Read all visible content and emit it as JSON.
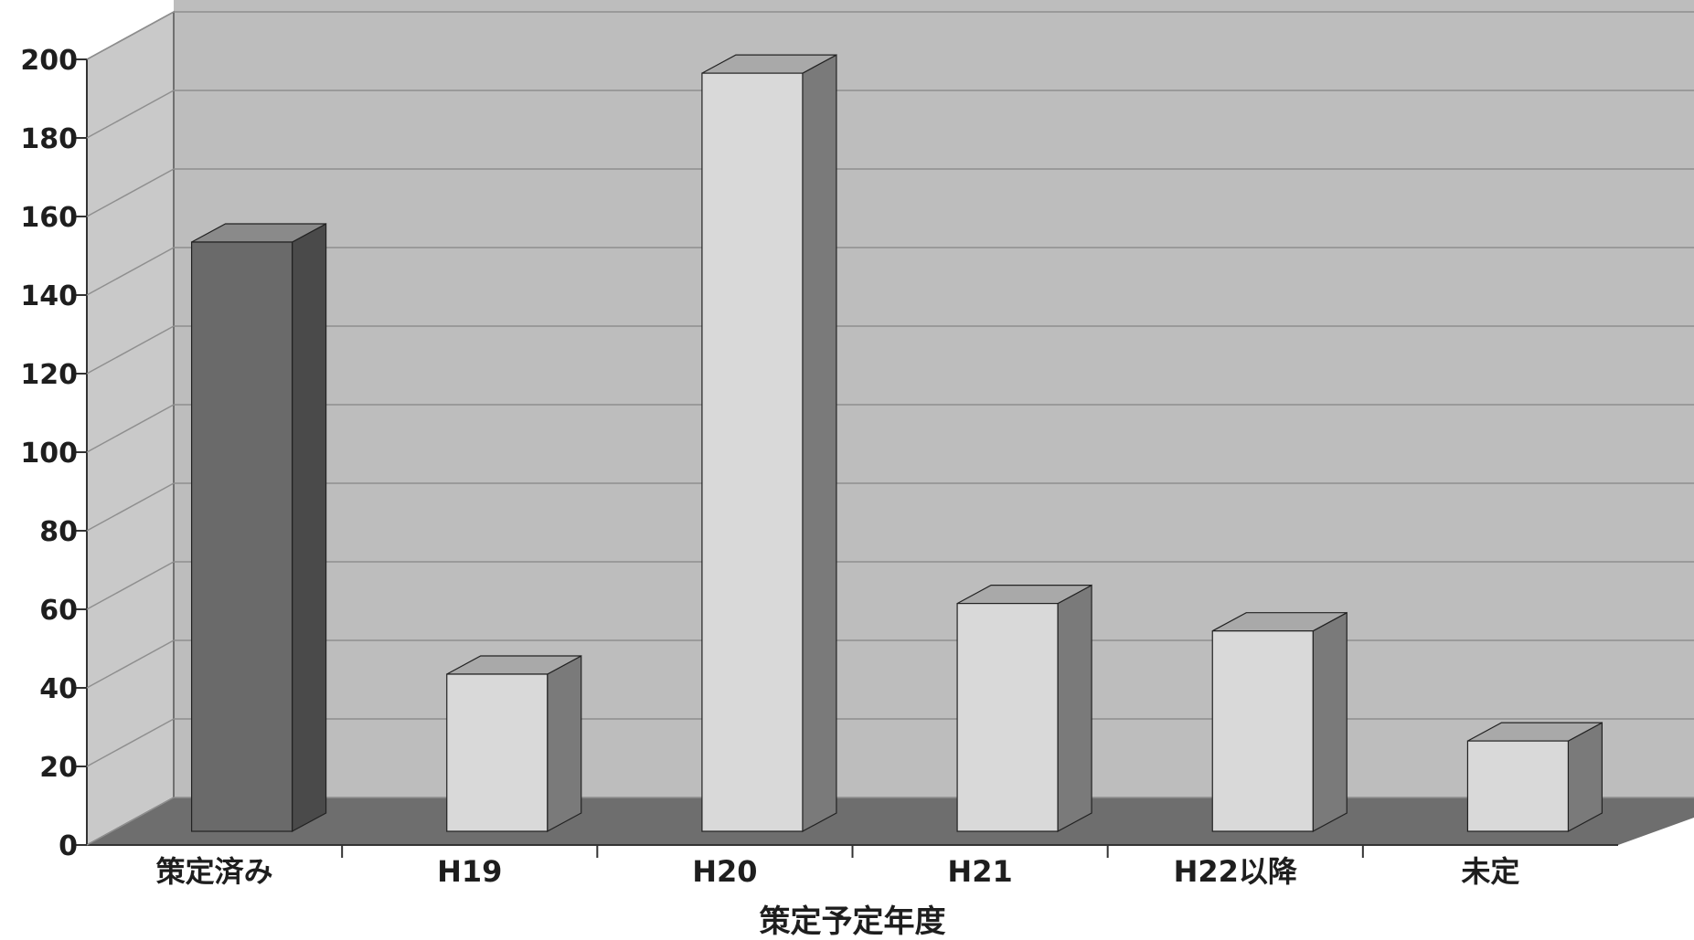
{
  "chart_data": {
    "type": "bar",
    "categories": [
      "策定済み",
      "H19",
      "H20",
      "H21",
      "H22以降",
      "未定"
    ],
    "values": [
      150,
      40,
      193,
      58,
      51,
      23
    ],
    "xlabel": "策定予定年度",
    "ylabel": "",
    "ylim": [
      0,
      200
    ],
    "yticks": [
      0,
      20,
      40,
      60,
      80,
      100,
      120,
      140,
      160,
      180,
      200
    ],
    "grid": true,
    "three_d": true,
    "colors": {
      "highlight_front": "#6a6a6a",
      "highlight_side": "#4a4a4a",
      "highlight_top": "#8a8a8a",
      "bar_front": "#d9d9d9",
      "bar_side": "#7a7a7a",
      "bar_top": "#a9a9a9",
      "wall": "#bdbdbd",
      "side_wall": "#c9c9c9",
      "floor": "#6e6e6e",
      "grid": "#8f8f8f"
    }
  }
}
